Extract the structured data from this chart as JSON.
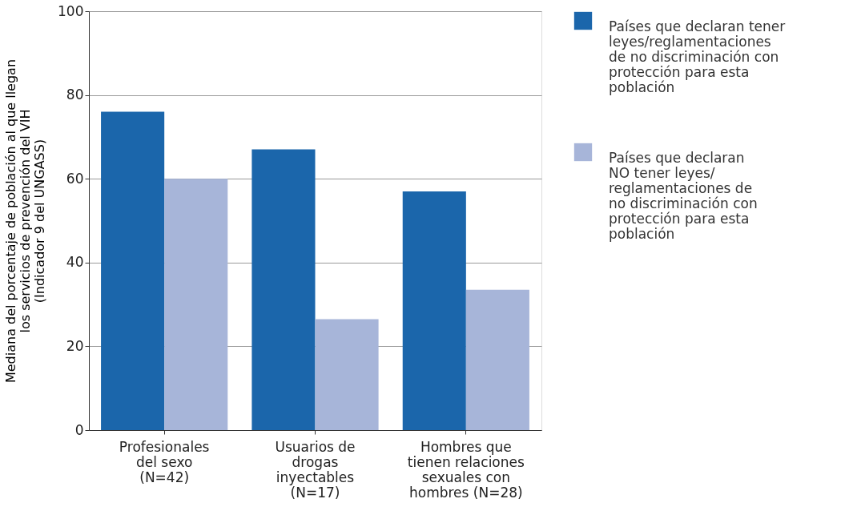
{
  "chart_data": {
    "type": "bar",
    "ylabel": "Mediana del porcentaje de población al que llegan\nlos servicios de prevención del VIH\n(Indicador 9 del UNGASS)",
    "categories": [
      "Profesionales\ndel sexo\n(N=42)",
      "Usuarios de\ndrogas\ninyectables\n(N=17)",
      "Hombres que\ntienen relaciones\nsexuales con\nhombres (N=28)"
    ],
    "series": [
      {
        "name": "Países que declaran tener\nleyes/reglamentaciones\nde no discriminación con\nprotección para esta\npoblación",
        "color": "#1b66ab",
        "values": [
          76,
          67,
          57
        ]
      },
      {
        "name": "Países que declaran\nNO tener leyes/\nreglamentaciones de\nno discriminación con\nprotección para esta\npoblación",
        "color": "#a7b5d9",
        "values": [
          60,
          26.5,
          33.5
        ]
      }
    ],
    "ylim": [
      0,
      100
    ],
    "yticks": [
      0,
      20,
      40,
      60,
      80,
      100
    ],
    "grid": "y",
    "legend": "right"
  }
}
